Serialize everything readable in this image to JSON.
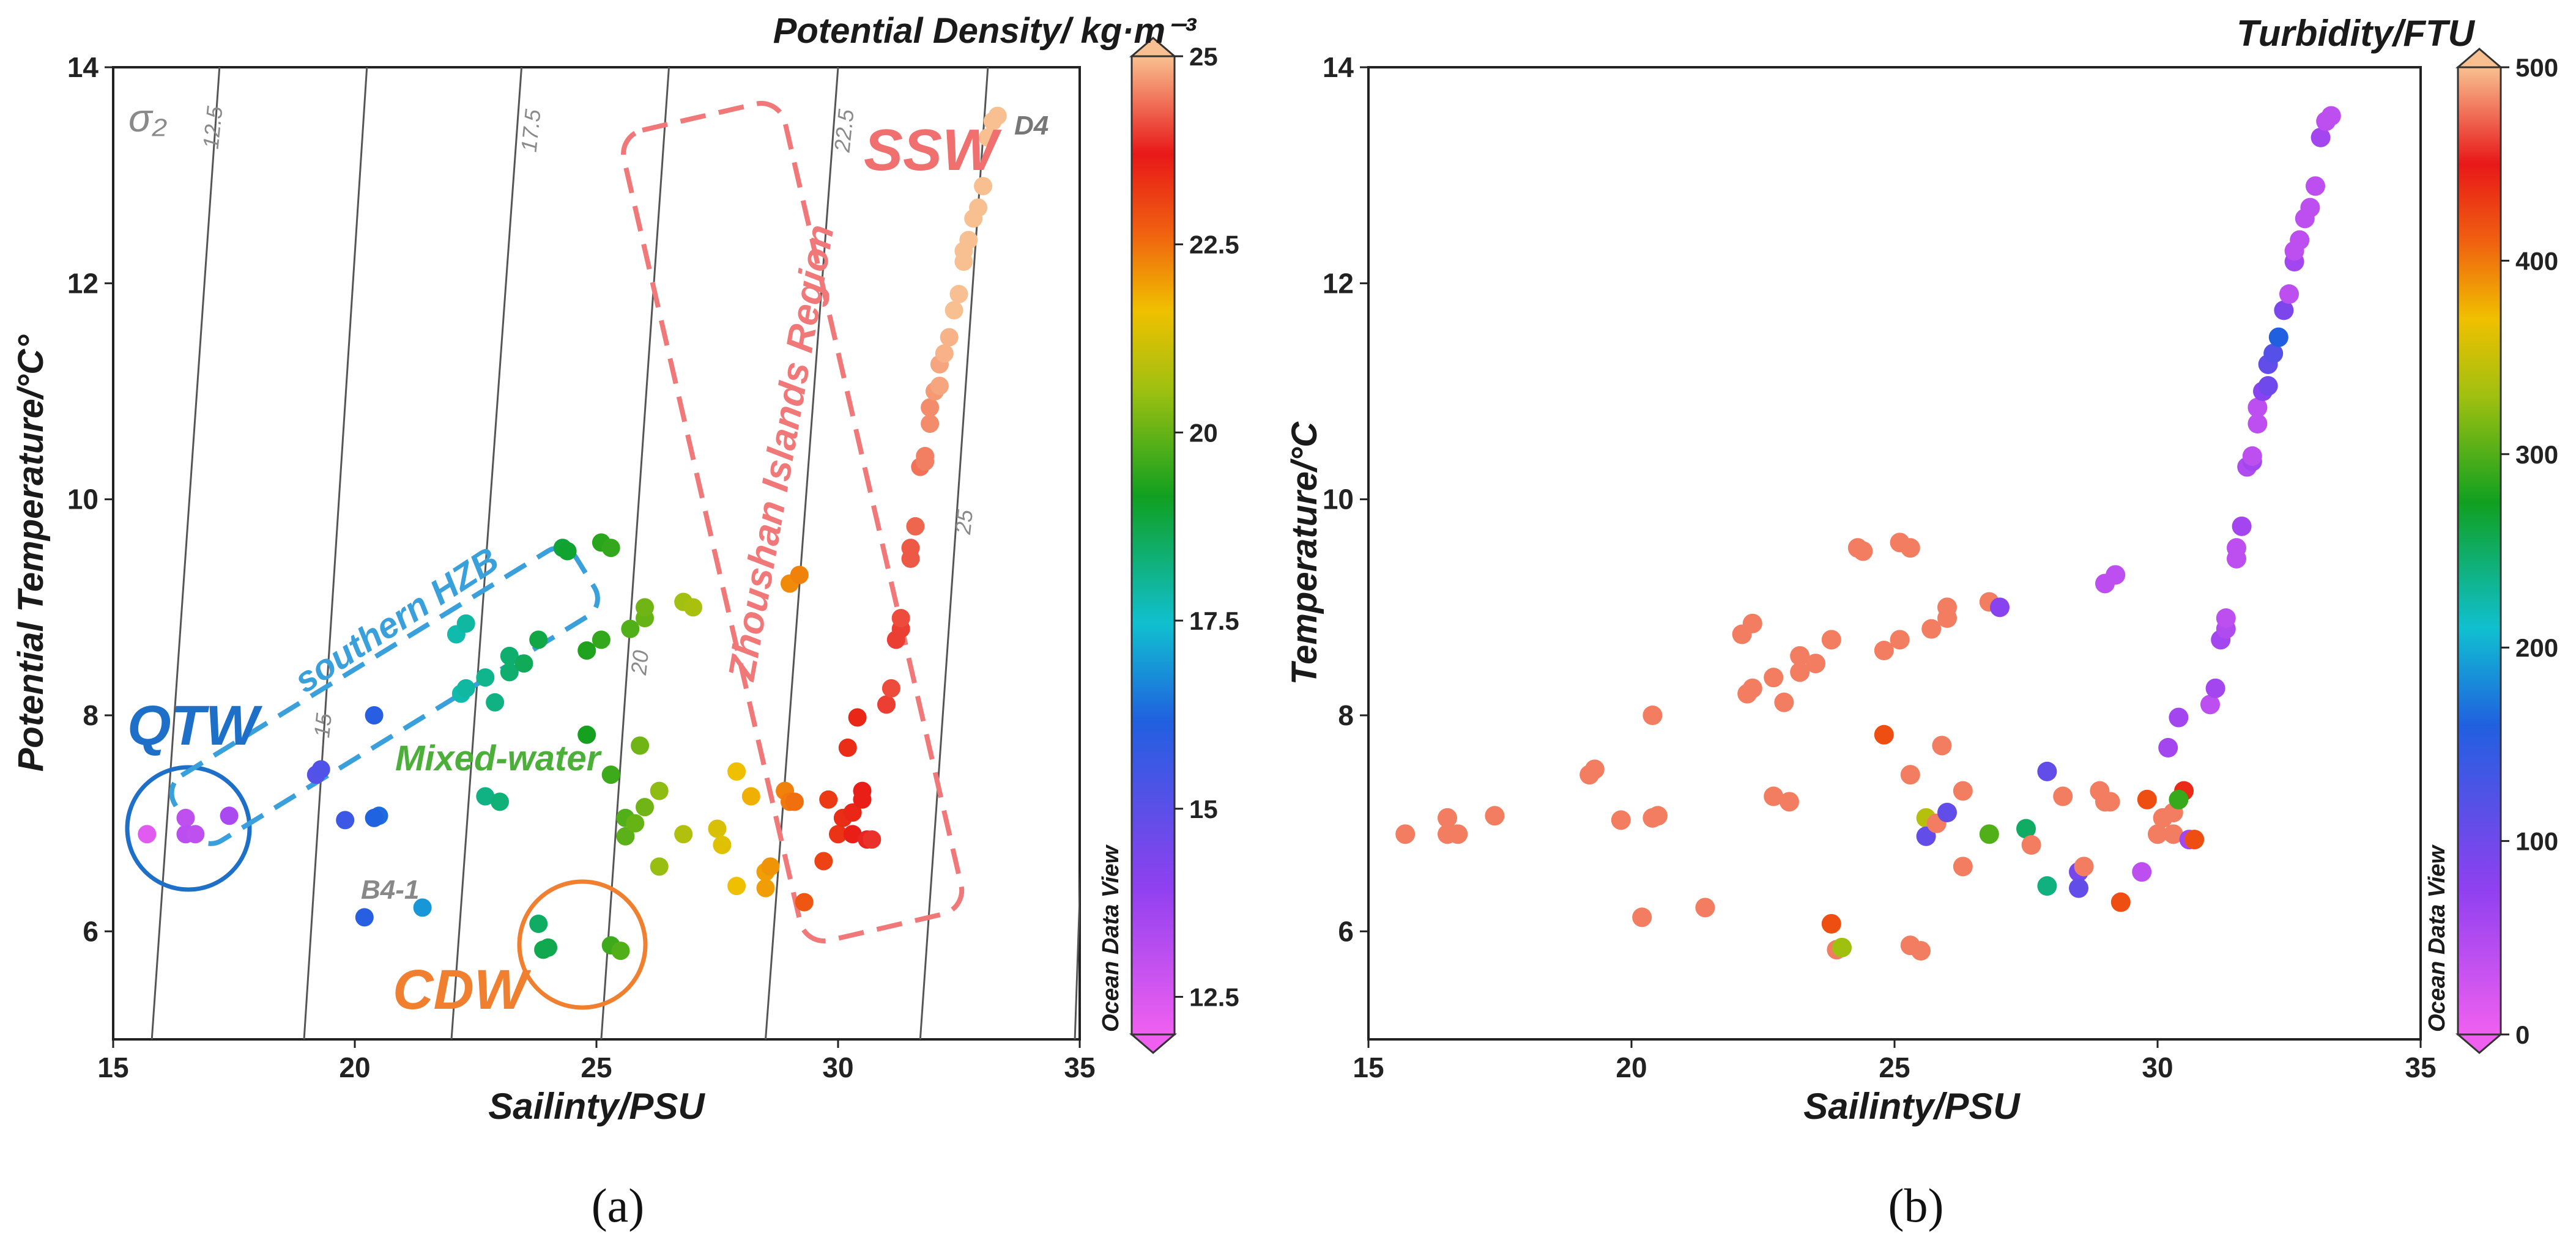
{
  "chart_data": [
    {
      "type": "scatter",
      "panel_label": "(a)",
      "title": "Potential Density/ kg·m⁻³",
      "xlabel": "Sailinty/PSU",
      "ylabel": "Potential Temperature/°C°",
      "xlim": [
        15,
        35
      ],
      "ylim": [
        5,
        14
      ],
      "xticks": [
        15,
        20,
        25,
        30,
        35
      ],
      "yticks": [
        6,
        8,
        10,
        12,
        14
      ],
      "colorbar": {
        "label": "Ocean Data View",
        "min": 12,
        "max": 25,
        "ticks": [
          12.5,
          15,
          17.5,
          20,
          22.5,
          25
        ]
      },
      "isopycnals": [
        {
          "label": "12.5",
          "value": 12.5
        },
        {
          "label": "15",
          "value": 15
        },
        {
          "label": "17.5",
          "value": 17.5
        },
        {
          "label": "20",
          "value": 20
        },
        {
          "label": "22.5",
          "value": 22.5
        },
        {
          "label": "25",
          "value": 25
        }
      ],
      "sigma_label": "σ₂",
      "annotations": {
        "qtw": "QTW",
        "southern_hzb": "southern HZB",
        "mixed_water": "Mixed-water",
        "cdw": "CDW",
        "ssw": "SSW",
        "zhoushan": "Zhoushan Islands Region",
        "d4": "D4",
        "b4_1": "B4-1"
      },
      "colors": {
        "qtw": "#1e6fc8",
        "hzb": "#3aa0dc",
        "mixed": "#4caf3a",
        "cdw": "#f08030",
        "ssw": "#f07070",
        "zhoushan": "#f07878"
      },
      "points": [
        [
          15.7,
          6.9,
          12.3
        ],
        [
          16.5,
          7.05,
          13.0
        ],
        [
          16.5,
          6.9,
          13.1
        ],
        [
          16.7,
          6.9,
          13.0
        ],
        [
          17.4,
          7.07,
          13.4
        ],
        [
          19.2,
          7.45,
          15.1
        ],
        [
          19.3,
          7.5,
          15.2
        ],
        [
          19.8,
          7.03,
          15.6
        ],
        [
          20.2,
          6.13,
          16.0
        ],
        [
          20.4,
          8.0,
          16.0
        ],
        [
          20.5,
          7.07,
          16.3
        ],
        [
          20.4,
          7.05,
          16.2
        ],
        [
          21.4,
          6.22,
          16.9
        ],
        [
          22.1,
          8.75,
          17.8
        ],
        [
          22.3,
          8.85,
          17.9
        ],
        [
          22.2,
          8.2,
          17.8
        ],
        [
          22.3,
          8.25,
          17.9
        ],
        [
          22.7,
          8.35,
          18.1
        ],
        [
          22.9,
          8.12,
          18.2
        ],
        [
          23.2,
          8.55,
          18.4
        ],
        [
          23.2,
          8.4,
          18.4
        ],
        [
          23.5,
          8.48,
          18.6
        ],
        [
          23.8,
          8.7,
          18.8
        ],
        [
          22.7,
          7.25,
          18.2
        ],
        [
          23.0,
          7.2,
          18.3
        ],
        [
          24.3,
          9.55,
          18.9
        ],
        [
          24.4,
          9.52,
          19.0
        ],
        [
          25.1,
          9.6,
          19.4
        ],
        [
          25.3,
          9.55,
          19.5
        ],
        [
          24.8,
          8.6,
          19.3
        ],
        [
          25.1,
          8.7,
          19.5
        ],
        [
          25.7,
          8.8,
          19.8
        ],
        [
          26.0,
          8.9,
          20.0
        ],
        [
          26.0,
          9.0,
          20.1
        ],
        [
          26.8,
          9.05,
          20.6
        ],
        [
          27.0,
          9.0,
          20.7
        ],
        [
          23.8,
          6.07,
          18.5
        ],
        [
          23.9,
          5.83,
          18.7
        ],
        [
          24.0,
          5.85,
          18.7
        ],
        [
          25.3,
          5.87,
          19.6
        ],
        [
          25.5,
          5.82,
          19.8
        ],
        [
          24.8,
          7.82,
          19.2
        ],
        [
          25.3,
          7.45,
          19.6
        ],
        [
          25.6,
          7.05,
          19.8
        ],
        [
          25.6,
          6.88,
          19.9
        ],
        [
          25.8,
          7.0,
          20.0
        ],
        [
          25.9,
          7.72,
          20.1
        ],
        [
          26.0,
          7.15,
          20.1
        ],
        [
          26.3,
          7.3,
          20.4
        ],
        [
          26.3,
          6.6,
          20.5
        ],
        [
          26.8,
          6.9,
          20.8
        ],
        [
          27.5,
          6.95,
          21.3
        ],
        [
          27.6,
          6.8,
          21.4
        ],
        [
          27.9,
          7.48,
          21.6
        ],
        [
          27.9,
          6.42,
          21.6
        ],
        [
          28.2,
          7.25,
          21.8
        ],
        [
          28.5,
          6.55,
          22.0
        ],
        [
          28.6,
          6.6,
          22.1
        ],
        [
          28.5,
          6.4,
          22.0
        ],
        [
          28.9,
          7.3,
          22.3
        ],
        [
          29.0,
          7.2,
          22.4
        ],
        [
          29.1,
          7.2,
          22.5
        ],
        [
          29.3,
          6.27,
          22.8
        ],
        [
          29.0,
          9.22,
          22.2
        ],
        [
          29.2,
          9.3,
          22.3
        ],
        [
          29.7,
          6.65,
          23.1
        ],
        [
          30.0,
          6.9,
          23.3
        ],
        [
          30.1,
          7.05,
          23.4
        ],
        [
          29.8,
          7.22,
          23.2
        ],
        [
          30.3,
          6.9,
          23.6
        ],
        [
          30.3,
          7.1,
          23.5
        ],
        [
          30.5,
          7.3,
          23.6
        ],
        [
          30.5,
          7.22,
          23.6
        ],
        [
          30.2,
          7.7,
          23.4
        ],
        [
          30.4,
          7.98,
          23.5
        ],
        [
          30.6,
          6.85,
          23.8
        ],
        [
          30.7,
          6.85,
          23.9
        ],
        [
          31.0,
          8.1,
          24.0
        ],
        [
          31.1,
          8.25,
          24.1
        ],
        [
          31.2,
          8.7,
          24.0
        ],
        [
          31.3,
          8.8,
          24.0
        ],
        [
          31.3,
          8.9,
          24.1
        ],
        [
          31.5,
          9.45,
          24.2
        ],
        [
          31.5,
          9.55,
          24.2
        ],
        [
          31.6,
          9.75,
          24.3
        ],
        [
          31.7,
          10.3,
          24.4
        ],
        [
          31.8,
          10.35,
          24.5
        ],
        [
          31.8,
          10.4,
          24.5
        ],
        [
          31.9,
          10.7,
          24.6
        ],
        [
          31.9,
          10.85,
          24.6
        ],
        [
          32.0,
          11.0,
          24.7
        ],
        [
          32.1,
          11.05,
          24.8
        ],
        [
          32.1,
          11.25,
          24.8
        ],
        [
          32.2,
          11.35,
          24.9
        ],
        [
          32.3,
          11.5,
          24.9
        ],
        [
          32.4,
          11.75,
          25.0
        ],
        [
          32.5,
          11.9,
          25.0
        ],
        [
          32.6,
          12.2,
          25.0
        ],
        [
          32.6,
          12.3,
          25.0
        ],
        [
          32.7,
          12.4,
          25.0
        ],
        [
          32.8,
          12.6,
          25.0
        ],
        [
          32.9,
          12.7,
          25.0
        ],
        [
          33.0,
          12.9,
          25.0
        ],
        [
          33.1,
          13.35,
          25.0
        ],
        [
          33.2,
          13.5,
          25.0
        ],
        [
          33.3,
          13.55,
          25.0
        ]
      ]
    },
    {
      "type": "scatter",
      "panel_label": "(b)",
      "title": "Turbidity/FTU",
      "xlabel": "Sailinty/PSU",
      "ylabel": "Temperature/°C",
      "xlim": [
        15,
        35
      ],
      "ylim": [
        5,
        14
      ],
      "xticks": [
        15,
        20,
        25,
        30,
        35
      ],
      "yticks": [
        6,
        8,
        10,
        12,
        14
      ],
      "colorbar": {
        "label": "Ocean Data View",
        "min": 0,
        "max": 500,
        "ticks": [
          0,
          100,
          200,
          300,
          400,
          500
        ]
      },
      "points": [
        [
          15.7,
          6.9,
          480
        ],
        [
          16.5,
          7.05,
          480
        ],
        [
          16.5,
          6.9,
          480
        ],
        [
          16.7,
          6.9,
          480
        ],
        [
          17.4,
          7.07,
          480
        ],
        [
          19.2,
          7.45,
          480
        ],
        [
          19.3,
          7.5,
          480
        ],
        [
          19.8,
          7.03,
          480
        ],
        [
          20.2,
          6.13,
          480
        ],
        [
          20.4,
          8.0,
          480
        ],
        [
          20.5,
          7.07,
          480
        ],
        [
          20.4,
          7.05,
          480
        ],
        [
          21.4,
          6.22,
          480
        ],
        [
          22.1,
          8.75,
          480
        ],
        [
          22.3,
          8.85,
          480
        ],
        [
          22.2,
          8.2,
          480
        ],
        [
          22.3,
          8.25,
          480
        ],
        [
          22.7,
          8.35,
          480
        ],
        [
          22.9,
          8.12,
          480
        ],
        [
          23.2,
          8.55,
          480
        ],
        [
          23.2,
          8.4,
          480
        ],
        [
          23.5,
          8.48,
          480
        ],
        [
          23.8,
          8.7,
          480
        ],
        [
          22.7,
          7.25,
          480
        ],
        [
          23.0,
          7.2,
          480
        ],
        [
          24.3,
          9.55,
          480
        ],
        [
          24.4,
          9.52,
          480
        ],
        [
          25.1,
          9.6,
          480
        ],
        [
          25.3,
          9.55,
          480
        ],
        [
          24.8,
          8.6,
          480
        ],
        [
          25.1,
          8.7,
          480
        ],
        [
          25.7,
          8.8,
          480
        ],
        [
          26.0,
          8.9,
          480
        ],
        [
          26.0,
          9.0,
          480
        ],
        [
          26.8,
          9.05,
          480
        ],
        [
          27.0,
          9.0,
          80
        ],
        [
          23.8,
          6.07,
          420
        ],
        [
          23.9,
          5.83,
          480
        ],
        [
          24.0,
          5.85,
          330
        ],
        [
          25.3,
          5.87,
          480
        ],
        [
          25.5,
          5.82,
          480
        ],
        [
          24.8,
          7.82,
          420
        ],
        [
          25.3,
          7.45,
          480
        ],
        [
          25.6,
          7.05,
          340
        ],
        [
          25.6,
          6.88,
          110
        ],
        [
          25.8,
          7.0,
          480
        ],
        [
          25.9,
          7.72,
          480
        ],
        [
          26.0,
          7.1,
          110
        ],
        [
          26.3,
          7.3,
          480
        ],
        [
          26.3,
          6.6,
          480
        ],
        [
          26.8,
          6.9,
          300
        ],
        [
          27.5,
          6.95,
          250
        ],
        [
          27.6,
          6.8,
          480
        ],
        [
          27.9,
          7.48,
          110
        ],
        [
          27.9,
          6.42,
          240
        ],
        [
          28.2,
          7.25,
          480
        ],
        [
          28.5,
          6.55,
          95
        ],
        [
          28.6,
          6.6,
          480
        ],
        [
          28.5,
          6.4,
          110
        ],
        [
          28.9,
          7.3,
          480
        ],
        [
          29.0,
          7.2,
          480
        ],
        [
          29.1,
          7.2,
          480
        ],
        [
          29.3,
          6.27,
          420
        ],
        [
          29.0,
          9.22,
          40
        ],
        [
          29.2,
          9.3,
          40
        ],
        [
          29.7,
          6.55,
          40
        ],
        [
          30.0,
          6.9,
          480
        ],
        [
          30.1,
          7.05,
          480
        ],
        [
          29.8,
          7.22,
          420
        ],
        [
          30.3,
          6.9,
          480
        ],
        [
          30.3,
          7.1,
          480
        ],
        [
          30.5,
          7.3,
          440
        ],
        [
          30.4,
          7.22,
          290
        ],
        [
          30.2,
          7.7,
          60
        ],
        [
          30.4,
          7.98,
          60
        ],
        [
          30.6,
          6.85,
          60
        ],
        [
          30.7,
          6.85,
          420
        ],
        [
          31.0,
          8.1,
          40
        ],
        [
          31.1,
          8.25,
          60
        ],
        [
          31.2,
          8.7,
          60
        ],
        [
          31.3,
          8.8,
          50
        ],
        [
          31.3,
          8.9,
          40
        ],
        [
          31.5,
          9.45,
          40
        ],
        [
          31.5,
          9.55,
          40
        ],
        [
          31.6,
          9.75,
          60
        ],
        [
          31.7,
          10.3,
          50
        ],
        [
          31.8,
          10.35,
          60
        ],
        [
          31.8,
          10.4,
          40
        ],
        [
          31.9,
          10.7,
          40
        ],
        [
          31.9,
          10.85,
          40
        ],
        [
          32.0,
          11.0,
          80
        ],
        [
          32.1,
          11.05,
          100
        ],
        [
          32.1,
          11.25,
          110
        ],
        [
          32.2,
          11.35,
          120
        ],
        [
          32.3,
          11.5,
          160
        ],
        [
          32.4,
          11.75,
          90
        ],
        [
          32.5,
          11.9,
          40
        ],
        [
          32.6,
          12.2,
          60
        ],
        [
          32.6,
          12.3,
          40
        ],
        [
          32.7,
          12.4,
          40
        ],
        [
          32.8,
          12.6,
          40
        ],
        [
          32.9,
          12.7,
          40
        ],
        [
          33.0,
          12.9,
          40
        ],
        [
          33.1,
          13.35,
          60
        ],
        [
          33.2,
          13.5,
          40
        ],
        [
          33.3,
          13.55,
          40
        ]
      ]
    }
  ]
}
